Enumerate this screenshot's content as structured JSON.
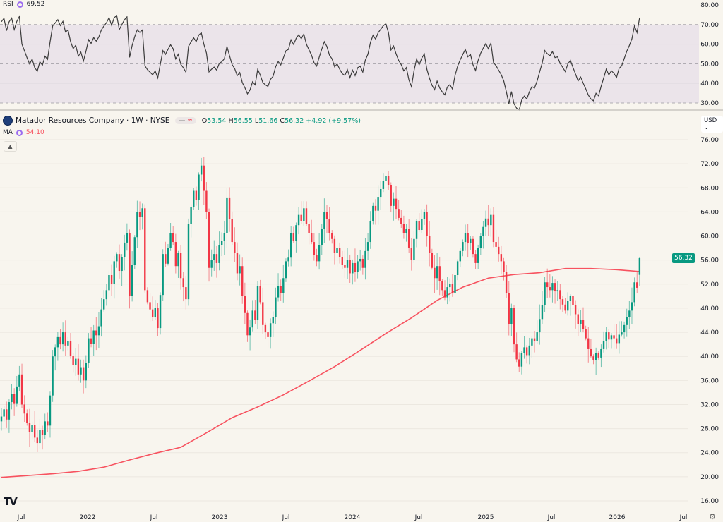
{
  "rsi": {
    "label": "RSI",
    "value": "69.52",
    "ticks": [
      "80.00",
      "70.00",
      "60.00",
      "50.00",
      "40.00",
      "30.00"
    ],
    "tick_values": [
      80,
      70,
      60,
      50,
      40,
      30
    ],
    "band": [
      30,
      70
    ],
    "midline": 50,
    "period": 14
  },
  "legend": {
    "title": "Matador Resources Company · 1W · NYSE",
    "pill_a": "—",
    "pill_b": "≈",
    "o_label": "O",
    "o": "53.54",
    "h_label": "H",
    "h": "56.55",
    "l_label": "L",
    "l": "51.66",
    "c_label": "C",
    "c": "56.32",
    "change": "+4.92 (+9.57%)",
    "ma_label": "MA",
    "ma_value": "54.10",
    "collapse_icon": "chevron-up-icon"
  },
  "currency": "USD ⌄",
  "last_price": "56.32",
  "colors": {
    "up": "#089981",
    "down": "#f23645",
    "ma": "#f7525f",
    "rsi_line": "#3b3b3b",
    "rsi_band": "#ebe4ea",
    "background": "#f8f5ee"
  },
  "chart_data": {
    "type": "candlestick",
    "interval": "1W",
    "ylim": [
      16,
      76
    ],
    "price_ticks": [
      "76.00",
      "72.00",
      "68.00",
      "64.00",
      "60.00",
      "56.00",
      "52.00",
      "48.00",
      "44.00",
      "40.00",
      "36.00",
      "32.00",
      "28.00",
      "24.00",
      "20.00",
      "16.00"
    ],
    "price_tick_values": [
      76,
      72,
      68,
      64,
      60,
      56,
      52,
      48,
      44,
      40,
      36,
      32,
      28,
      24,
      20,
      16
    ],
    "x_ticks": [
      "Jul",
      "2022",
      "Jul",
      "2023",
      "Jul",
      "2024",
      "Jul",
      "2025",
      "Jul",
      "2026",
      "Jul"
    ],
    "grid": true,
    "last_candle": {
      "open": 53.54,
      "high": 56.55,
      "low": 51.66,
      "close": 56.32
    },
    "close": [
      30.0,
      31.2,
      29.5,
      32.4,
      33.8,
      32.1,
      35.0,
      37.0,
      32.0,
      30.5,
      28.9,
      27.4,
      28.6,
      26.5,
      25.6,
      27.8,
      27.0,
      29.2,
      28.5,
      33.5,
      40.0,
      41.5,
      43.2,
      42.0,
      44.0,
      41.8,
      42.6,
      40.1,
      38.5,
      39.6,
      37.0,
      38.2,
      36.0,
      38.9,
      43.0,
      42.1,
      44.3,
      43.5,
      45.0,
      47.8,
      49.5,
      51.0,
      53.5,
      52.0,
      55.8,
      57.0,
      54.2,
      56.5,
      58.9,
      60.5,
      50.0,
      55.2,
      59.8,
      64.0,
      63.2,
      64.6,
      51.0,
      49.0,
      47.8,
      46.5,
      48.0,
      44.7,
      50.2,
      57.0,
      55.4,
      58.0,
      60.5,
      59.0,
      55.0,
      57.2,
      53.0,
      51.5,
      49.5,
      62.0,
      64.8,
      67.5,
      66.0,
      70.2,
      71.7,
      67.5,
      64.0,
      54.7,
      56.0,
      57.0,
      55.5,
      58.5,
      59.2,
      60.5,
      66.4,
      62.8,
      59.0,
      57.2,
      53.8,
      55.0,
      50.0,
      47.2,
      43.5,
      44.8,
      47.6,
      46.0,
      51.7,
      49.0,
      45.2,
      44.0,
      43.2,
      45.5,
      46.5,
      49.8,
      51.7,
      50.5,
      53.0,
      55.8,
      56.4,
      60.5,
      59.2,
      61.8,
      63.5,
      62.5,
      64.6,
      62.0,
      60.5,
      59.0,
      56.8,
      55.8,
      58.5,
      61.2,
      64.0,
      62.8,
      60.5,
      59.5,
      57.2,
      58.0,
      56.5,
      55.2,
      54.7,
      56.0,
      53.8,
      55.5,
      54.0,
      55.8,
      56.2,
      54.7,
      57.5,
      59.0,
      62.5,
      65.0,
      64.2,
      66.5,
      67.8,
      69.2,
      70.0,
      68.5,
      65.0,
      66.2,
      64.5,
      63.0,
      62.0,
      60.5,
      61.2,
      58.0,
      56.0,
      59.5,
      62.5,
      61.0,
      62.8,
      64.0,
      60.0,
      57.2,
      54.7,
      53.0,
      55.0,
      52.5,
      51.0,
      49.8,
      51.5,
      52.0,
      50.5,
      53.5,
      55.8,
      57.5,
      59.0,
      60.5,
      58.8,
      59.5,
      57.0,
      55.5,
      58.0,
      60.0,
      61.5,
      62.9,
      61.8,
      63.5,
      59.0,
      58.2,
      57.0,
      55.8,
      54.0,
      50.5,
      45.3,
      48.0,
      42.0,
      39.5,
      38.3,
      40.6,
      41.5,
      40.2,
      41.8,
      43.0,
      42.5,
      44.0,
      46.2,
      48.5,
      52.3,
      51.5,
      51.0,
      52.2,
      50.8,
      51.0,
      49.5,
      48.6,
      47.6,
      49.2,
      50.0,
      48.5,
      47.0,
      45.3,
      46.0,
      44.5,
      43.0,
      41.2,
      40.0,
      39.4,
      40.5,
      39.8,
      41.2,
      42.5,
      44.0,
      42.8,
      43.5,
      43.0,
      42.2,
      43.6,
      44.0,
      45.2,
      46.5,
      47.6,
      49.0,
      52.3,
      51.4,
      56.32
    ],
    "ma": {
      "step_weeks": 10,
      "values": [
        19.9,
        20.2,
        20.5,
        20.9,
        21.6,
        22.8,
        23.9,
        24.9,
        27.3,
        29.8,
        31.6,
        33.6,
        35.9,
        38.3,
        41.0,
        43.8,
        46.4,
        49.3,
        51.5,
        53.0,
        53.6,
        53.9,
        54.6,
        54.6,
        54.4,
        54.1
      ]
    }
  }
}
